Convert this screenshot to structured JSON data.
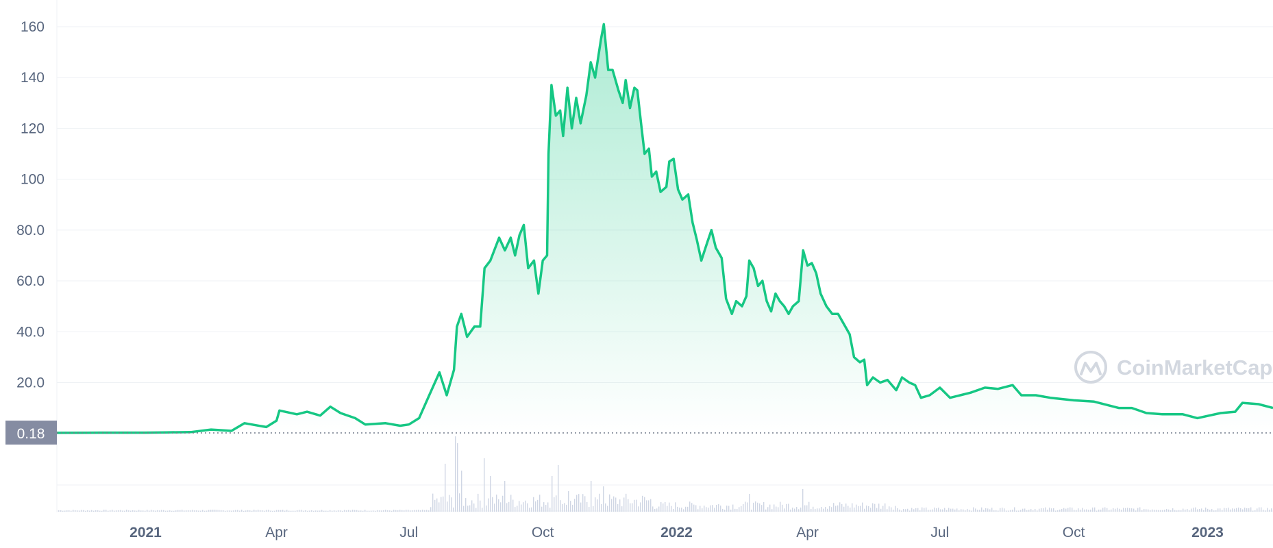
{
  "colors": {
    "line": "#16c784",
    "fill_top": "#16c784",
    "grid": "#eff2f5",
    "tick_text": "#58667e",
    "volume_bar": "#cfd6e4",
    "ref_label_bg": "#858ca2",
    "watermark": "#d3d8e0"
  },
  "watermark": {
    "icon": "coinmarketcap-logo-icon",
    "text": "CoinMarketCap"
  },
  "chart_data": {
    "type": "area",
    "x_axis": {
      "type": "date",
      "range": [
        "2020-11-01",
        "2023-02-15"
      ],
      "ticks": [
        {
          "date": "2021-01-01",
          "label": "2021",
          "bold": true
        },
        {
          "date": "2021-04-01",
          "label": "Apr",
          "bold": false
        },
        {
          "date": "2021-07-01",
          "label": "Jul",
          "bold": false
        },
        {
          "date": "2021-10-01",
          "label": "Oct",
          "bold": false
        },
        {
          "date": "2022-01-01",
          "label": "2022",
          "bold": true
        },
        {
          "date": "2022-04-01",
          "label": "Apr",
          "bold": false
        },
        {
          "date": "2022-07-01",
          "label": "Jul",
          "bold": false
        },
        {
          "date": "2022-10-01",
          "label": "Oct",
          "bold": false
        },
        {
          "date": "2023-01-01",
          "label": "2023",
          "bold": true
        }
      ]
    },
    "y_axis": {
      "range": [
        0,
        165
      ],
      "ticks": [
        {
          "value": 20,
          "label": "20.0"
        },
        {
          "value": 40,
          "label": "40.0"
        },
        {
          "value": 60,
          "label": "60.0"
        },
        {
          "value": 80,
          "label": "80.0"
        },
        {
          "value": 100,
          "label": "100"
        },
        {
          "value": 120,
          "label": "120"
        },
        {
          "value": 140,
          "label": "140"
        },
        {
          "value": 160,
          "label": "160"
        }
      ]
    },
    "reference_line": {
      "value": 0.18,
      "label": "0.18",
      "style": "dotted"
    },
    "grid": true,
    "legend": "none",
    "series": [
      {
        "points": [
          [
            "2020-11-01",
            0.2
          ],
          [
            "2020-12-01",
            0.3
          ],
          [
            "2021-01-01",
            0.3
          ],
          [
            "2021-01-15",
            0.4
          ],
          [
            "2021-02-01",
            0.5
          ],
          [
            "2021-02-15",
            1.5
          ],
          [
            "2021-03-01",
            1.0
          ],
          [
            "2021-03-10",
            4.0
          ],
          [
            "2021-03-25",
            2.5
          ],
          [
            "2021-04-01",
            5.0
          ],
          [
            "2021-04-03",
            9.0
          ],
          [
            "2021-04-15",
            7.5
          ],
          [
            "2021-04-22",
            8.5
          ],
          [
            "2021-05-01",
            7.0
          ],
          [
            "2021-05-08",
            10.5
          ],
          [
            "2021-05-15",
            8.0
          ],
          [
            "2021-05-25",
            6.0
          ],
          [
            "2021-06-01",
            3.5
          ],
          [
            "2021-06-15",
            4.0
          ],
          [
            "2021-06-25",
            3.0
          ],
          [
            "2021-07-01",
            3.5
          ],
          [
            "2021-07-08",
            6.0
          ],
          [
            "2021-07-15",
            15.0
          ],
          [
            "2021-07-22",
            24.0
          ],
          [
            "2021-07-27",
            15.0
          ],
          [
            "2021-08-01",
            25.0
          ],
          [
            "2021-08-03",
            42.0
          ],
          [
            "2021-08-06",
            47.0
          ],
          [
            "2021-08-10",
            38.0
          ],
          [
            "2021-08-15",
            42.0
          ],
          [
            "2021-08-19",
            42.0
          ],
          [
            "2021-08-22",
            65.0
          ],
          [
            "2021-08-26",
            68.0
          ],
          [
            "2021-09-01",
            77.0
          ],
          [
            "2021-09-05",
            72.0
          ],
          [
            "2021-09-09",
            77.0
          ],
          [
            "2021-09-12",
            70.0
          ],
          [
            "2021-09-15",
            78.0
          ],
          [
            "2021-09-18",
            82.0
          ],
          [
            "2021-09-21",
            65.0
          ],
          [
            "2021-09-25",
            68.0
          ],
          [
            "2021-09-28",
            55.0
          ],
          [
            "2021-10-01",
            68.0
          ],
          [
            "2021-10-04",
            70.0
          ],
          [
            "2021-10-05",
            110.0
          ],
          [
            "2021-10-07",
            137.0
          ],
          [
            "2021-10-10",
            125.0
          ],
          [
            "2021-10-13",
            127.0
          ],
          [
            "2021-10-15",
            117.0
          ],
          [
            "2021-10-18",
            136.0
          ],
          [
            "2021-10-21",
            120.0
          ],
          [
            "2021-10-24",
            132.0
          ],
          [
            "2021-10-27",
            122.0
          ],
          [
            "2021-10-31",
            133.0
          ],
          [
            "2021-11-03",
            146.0
          ],
          [
            "2021-11-06",
            140.0
          ],
          [
            "2021-11-10",
            155.0
          ],
          [
            "2021-11-12",
            161.0
          ],
          [
            "2021-11-15",
            143.0
          ],
          [
            "2021-11-18",
            143.0
          ],
          [
            "2021-11-22",
            135.0
          ],
          [
            "2021-11-25",
            130.0
          ],
          [
            "2021-11-27",
            139.0
          ],
          [
            "2021-11-30",
            128.0
          ],
          [
            "2021-12-03",
            136.0
          ],
          [
            "2021-12-05",
            135.0
          ],
          [
            "2021-12-08",
            120.0
          ],
          [
            "2021-12-10",
            110.0
          ],
          [
            "2021-12-13",
            112.0
          ],
          [
            "2021-12-15",
            101.0
          ],
          [
            "2021-12-18",
            103.0
          ],
          [
            "2021-12-21",
            95.0
          ],
          [
            "2021-12-25",
            97.0
          ],
          [
            "2021-12-27",
            107.0
          ],
          [
            "2021-12-30",
            108.0
          ],
          [
            "2022-01-02",
            96.0
          ],
          [
            "2022-01-05",
            92.0
          ],
          [
            "2022-01-09",
            94.0
          ],
          [
            "2022-01-12",
            83.0
          ],
          [
            "2022-01-15",
            76.0
          ],
          [
            "2022-01-18",
            68.0
          ],
          [
            "2022-01-22",
            75.0
          ],
          [
            "2022-01-25",
            80.0
          ],
          [
            "2022-01-28",
            73.0
          ],
          [
            "2022-02-01",
            69.0
          ],
          [
            "2022-02-04",
            53.0
          ],
          [
            "2022-02-08",
            47.0
          ],
          [
            "2022-02-11",
            52.0
          ],
          [
            "2022-02-15",
            50.0
          ],
          [
            "2022-02-18",
            54.0
          ],
          [
            "2022-02-20",
            68.0
          ],
          [
            "2022-02-23",
            65.0
          ],
          [
            "2022-02-26",
            58.0
          ],
          [
            "2022-03-01",
            60.0
          ],
          [
            "2022-03-04",
            52.0
          ],
          [
            "2022-03-07",
            48.0
          ],
          [
            "2022-03-10",
            55.0
          ],
          [
            "2022-03-13",
            52.0
          ],
          [
            "2022-03-16",
            50.0
          ],
          [
            "2022-03-19",
            47.0
          ],
          [
            "2022-03-22",
            50.0
          ],
          [
            "2022-03-26",
            52.0
          ],
          [
            "2022-03-29",
            72.0
          ],
          [
            "2022-04-01",
            66.0
          ],
          [
            "2022-04-04",
            67.0
          ],
          [
            "2022-04-07",
            63.0
          ],
          [
            "2022-04-10",
            55.0
          ],
          [
            "2022-04-14",
            50.0
          ],
          [
            "2022-04-18",
            47.0
          ],
          [
            "2022-04-22",
            47.0
          ],
          [
            "2022-04-26",
            43.0
          ],
          [
            "2022-04-30",
            39.0
          ],
          [
            "2022-05-03",
            30.0
          ],
          [
            "2022-05-07",
            28.0
          ],
          [
            "2022-05-10",
            29.0
          ],
          [
            "2022-05-12",
            19.0
          ],
          [
            "2022-05-16",
            22.0
          ],
          [
            "2022-05-21",
            20.0
          ],
          [
            "2022-05-26",
            21.0
          ],
          [
            "2022-06-01",
            17.0
          ],
          [
            "2022-06-05",
            22.0
          ],
          [
            "2022-06-10",
            20.0
          ],
          [
            "2022-06-14",
            19.0
          ],
          [
            "2022-06-18",
            14.0
          ],
          [
            "2022-06-24",
            15.0
          ],
          [
            "2022-07-01",
            18.0
          ],
          [
            "2022-07-08",
            14.0
          ],
          [
            "2022-07-15",
            15.0
          ],
          [
            "2022-07-22",
            16.0
          ],
          [
            "2022-08-01",
            18.0
          ],
          [
            "2022-08-10",
            17.5
          ],
          [
            "2022-08-20",
            19.0
          ],
          [
            "2022-08-26",
            15.0
          ],
          [
            "2022-09-05",
            15.0
          ],
          [
            "2022-09-15",
            14.0
          ],
          [
            "2022-10-01",
            13.0
          ],
          [
            "2022-10-15",
            12.5
          ],
          [
            "2022-11-01",
            10.0
          ],
          [
            "2022-11-10",
            10.0
          ],
          [
            "2022-11-20",
            8.0
          ],
          [
            "2022-12-01",
            7.5
          ],
          [
            "2022-12-15",
            7.5
          ],
          [
            "2022-12-25",
            6.0
          ],
          [
            "2023-01-10",
            8.0
          ],
          [
            "2023-01-20",
            8.5
          ],
          [
            "2023-01-25",
            12.0
          ],
          [
            "2023-02-05",
            11.5
          ],
          [
            "2023-02-15",
            10.0
          ]
        ]
      }
    ]
  }
}
